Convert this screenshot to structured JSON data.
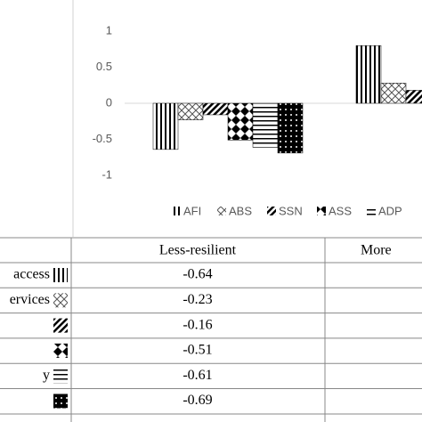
{
  "chart_data": {
    "type": "bar",
    "categories": [
      "Less-resilient",
      "More"
    ],
    "ylim": [
      -1,
      1
    ],
    "yticks": [
      1,
      0.5,
      0,
      -0.5,
      -1
    ],
    "series": [
      {
        "name": "AFI",
        "pattern": "vlines",
        "values": [
          -0.64,
          0.8
        ]
      },
      {
        "name": "ABS",
        "pattern": "cross",
        "values": [
          -0.23,
          0.28
        ]
      },
      {
        "name": "SSN",
        "pattern": "diag",
        "values": [
          -0.16,
          0.18
        ]
      },
      {
        "name": "ASS",
        "pattern": "diamond",
        "values": [
          -0.51,
          null
        ]
      },
      {
        "name": "ADP",
        "pattern": "hlines",
        "values": [
          -0.61,
          null
        ]
      },
      {
        "pattern": "dots",
        "values": [
          -0.69,
          null
        ]
      }
    ],
    "table_row_labels": [
      "access",
      "ervices",
      null,
      null,
      "y",
      null
    ]
  }
}
